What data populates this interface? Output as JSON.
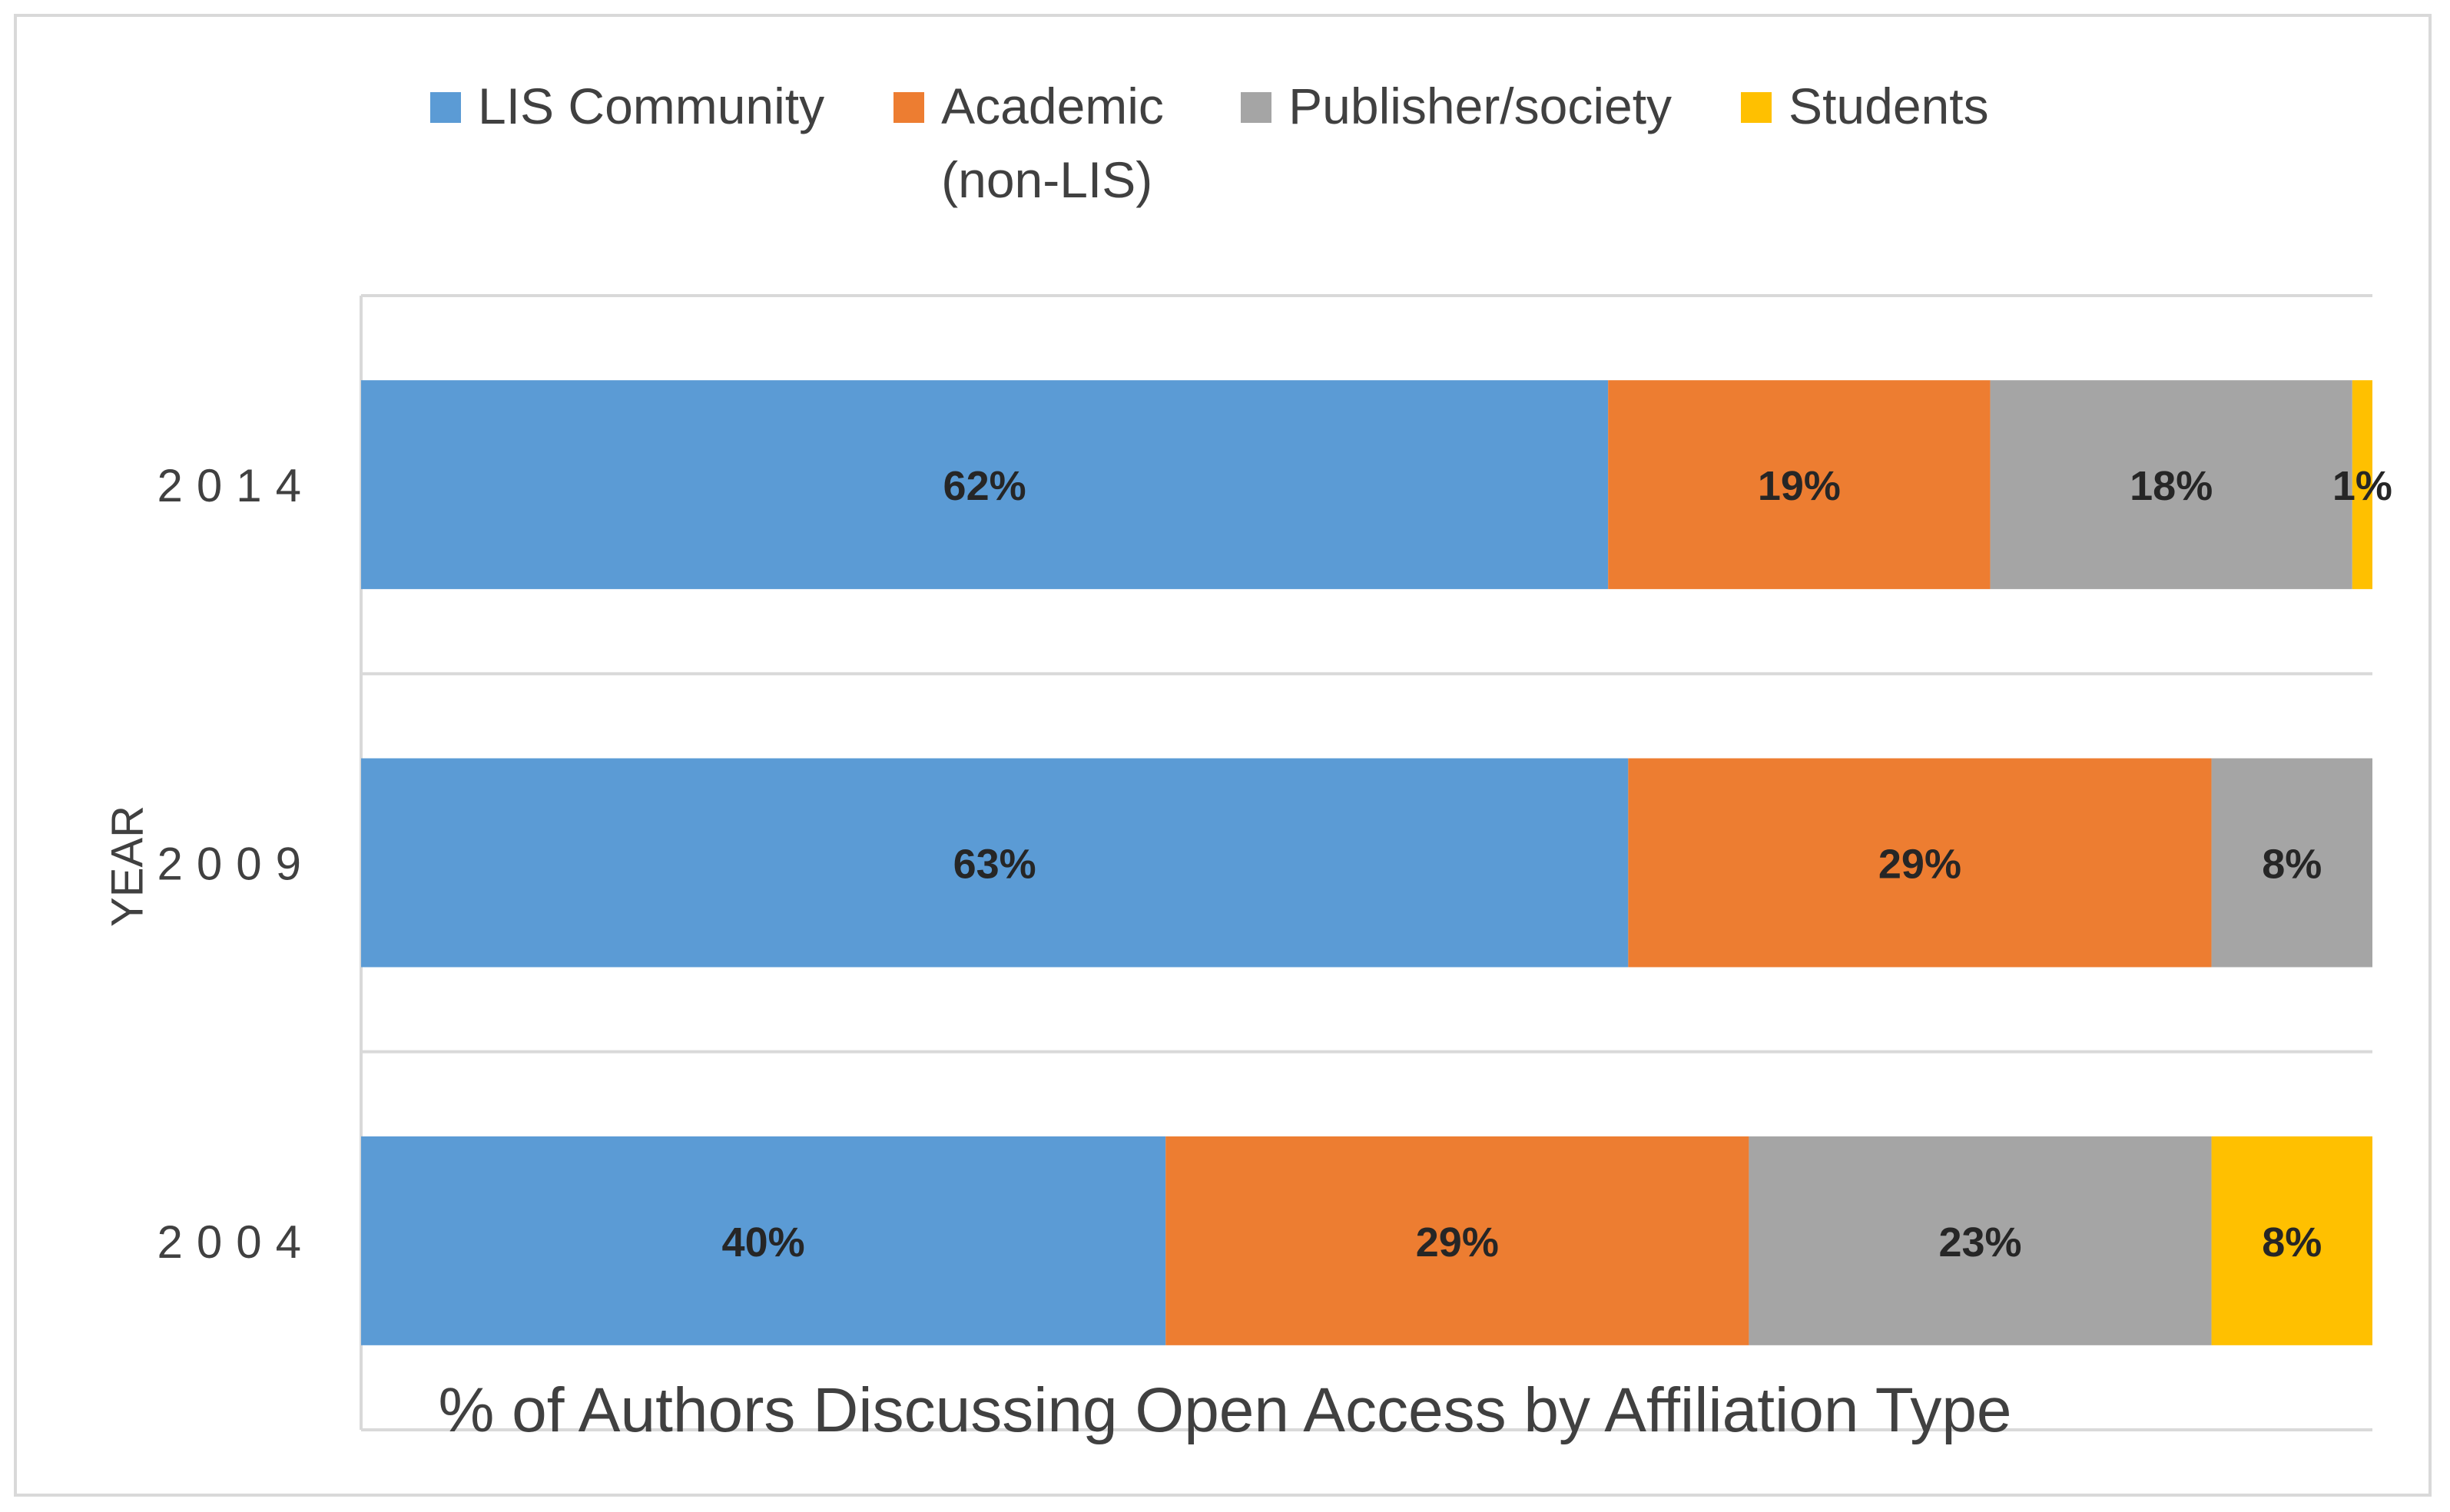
{
  "chart_data": {
    "type": "bar",
    "orientation": "horizontal",
    "stacked": true,
    "categories": [
      "2004",
      "2009",
      "2014"
    ],
    "series": [
      {
        "name": "LIS Community",
        "values": [
          40,
          63,
          62
        ],
        "labels": [
          "40%",
          "63%",
          "62%"
        ],
        "color": "#5b9bd5"
      },
      {
        "name": "Academic (non-LIS)",
        "values": [
          29,
          29,
          19
        ],
        "labels": [
          "29%",
          "29%",
          "19%"
        ],
        "color": "#ed7d31"
      },
      {
        "name": "Publisher/society",
        "values": [
          23,
          8,
          18
        ],
        "labels": [
          "23%",
          "8%",
          "18%"
        ],
        "color": "#a5a5a5"
      },
      {
        "name": "Students",
        "values": [
          8,
          0,
          1
        ],
        "labels": [
          "8%",
          "",
          "1%"
        ],
        "color": "#ffc000"
      }
    ],
    "xlabel": "% of Authors Discussing Open Access by Affiliation Type",
    "ylabel": "YEAR",
    "xlim": [
      0,
      100
    ],
    "grid": true,
    "legend": "top"
  }
}
